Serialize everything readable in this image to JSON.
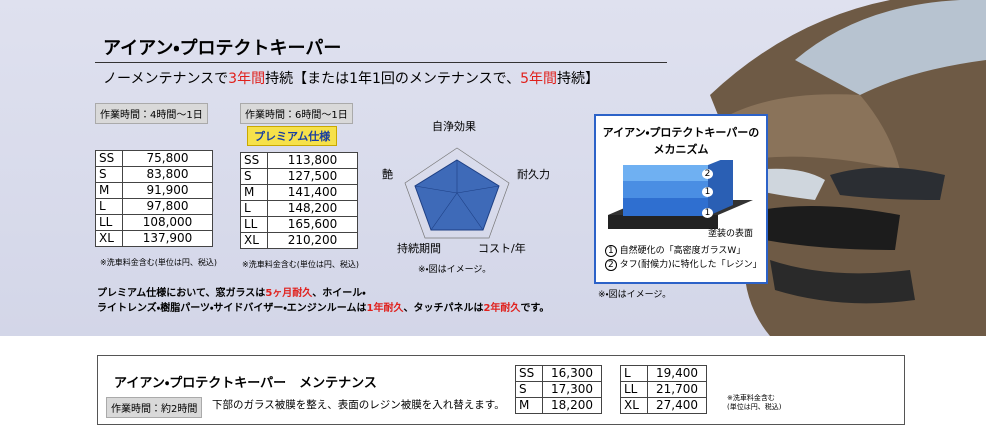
{
  "header": {
    "title": "アイアン・プロテクトキーパー",
    "subtitle": [
      "ノーメンテナンスで",
      "3年間",
      "持続【または1年1回のメンテナンスで、",
      "5年間",
      "持続】"
    ]
  },
  "standard": {
    "time": "作業時間：4時間〜1日",
    "rows": [
      [
        "SS",
        "75,800"
      ],
      [
        "S",
        "83,800"
      ],
      [
        "M",
        "91,900"
      ],
      [
        "L",
        "97,800"
      ],
      [
        "LL",
        "108,000"
      ],
      [
        "XL",
        "137,900"
      ]
    ],
    "note": "※洗車料金含む(単位は円、税込)"
  },
  "premium": {
    "time": "作業時間：6時間〜1日",
    "badge": "プレミアム仕様",
    "rows": [
      [
        "SS",
        "113,800"
      ],
      [
        "S",
        "127,500"
      ],
      [
        "M",
        "141,400"
      ],
      [
        "L",
        "148,200"
      ],
      [
        "LL",
        "165,600"
      ],
      [
        "XL",
        "210,200"
      ]
    ],
    "note": "※洗車料金含む(単位は円、税込)"
  },
  "radar": {
    "labels": [
      "自浄効果",
      "耐久力",
      "コスト/年",
      "持続期間",
      "艶"
    ],
    "note": "※・図はイメージ。"
  },
  "premium_text": {
    "line1": [
      "プレミアム仕様において、窓ガラスは",
      "5ヶ月耐久",
      "、ホイール・"
    ],
    "line2": [
      "ライトレンズ・樹脂パーツ・サイドバイザー・エンジンルームは",
      "1年耐久",
      "、タッチパネルは",
      "2年耐久",
      "です。"
    ]
  },
  "mechanism": {
    "title": [
      "アイアン・プロテクトキーパーの",
      "メカニズム"
    ],
    "layers": [
      "2",
      "1",
      "1"
    ],
    "base": "塗装の表面",
    "legend": [
      [
        "1",
        "自然硬化の「高密度ガラスW」"
      ],
      [
        "2",
        "タフ(耐候力)に特化した「レジン」"
      ]
    ],
    "note": "※・図はイメージ。"
  },
  "maintenance": {
    "title": "アイアン・プロテクトキーパー　メンテナンス",
    "time": "作業時間：約2時間",
    "description": "下部のガラス被膜を整え、表面のレジン被膜を入れ替えます。",
    "table_a": [
      [
        "SS",
        "16,300"
      ],
      [
        "S",
        "17,300"
      ],
      [
        "M",
        "18,200"
      ]
    ],
    "table_b": [
      [
        "L",
        "19,400"
      ],
      [
        "LL",
        "21,700"
      ],
      [
        "XL",
        "27,400"
      ]
    ],
    "note": [
      "※洗車料金含む",
      "(単位は円、税込)"
    ]
  }
}
